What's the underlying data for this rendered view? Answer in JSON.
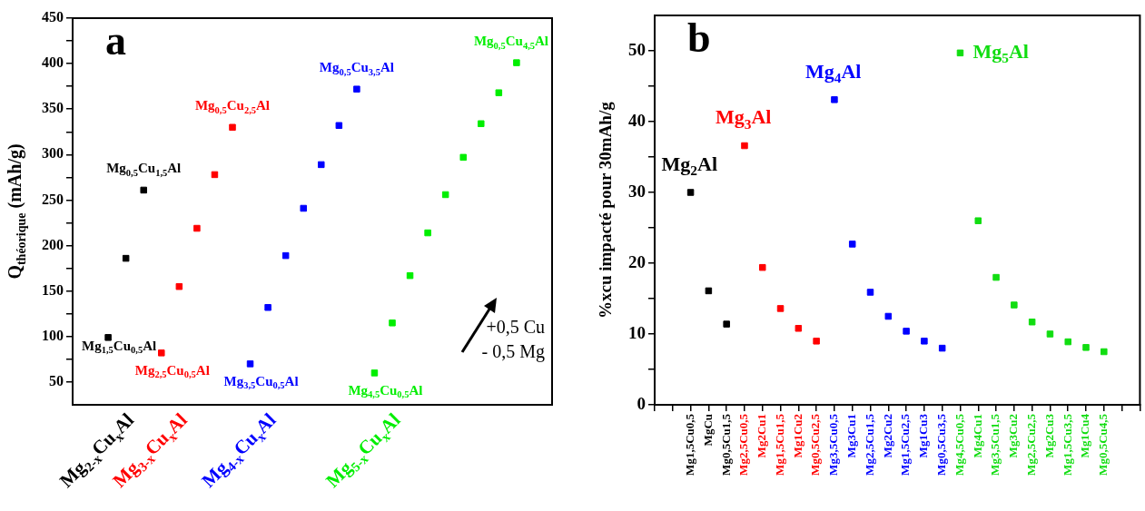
{
  "chart_data": [
    {
      "type": "scatter",
      "title": "a",
      "ylabel": "Q$_{théorique}$ (mAh/g)",
      "marker": "square",
      "categories": [
        null,
        null,
        null,
        "Mg$_{2-x}$Cu$_{x}$Al",
        null,
        null,
        "Mg$_{3-x}$Cu$_{x}$Al",
        null,
        null,
        null,
        null,
        "Mg$_{4-x}$Cu$_{x}$Al",
        null,
        null,
        null,
        null,
        null,
        null,
        "Mg$_{5-x}$Cu$_{x}$Al",
        null,
        null,
        null,
        null,
        null,
        null,
        null,
        null,
        null
      ],
      "ylim": [
        25,
        450
      ],
      "yticks": [
        50,
        {
          "value": 75,
          "label": null
        },
        100,
        {
          "value": 125,
          "label": null
        },
        150,
        {
          "value": 175,
          "label": null
        },
        200,
        {
          "value": 225,
          "label": null
        },
        250,
        {
          "value": 275,
          "label": null
        },
        300,
        {
          "value": 325,
          "label": null
        },
        350,
        {
          "value": 375,
          "label": null
        },
        400,
        {
          "value": 425,
          "label": null
        },
        450
      ],
      "series": [
        {
          "color": "#000000",
          "values": [
            null,
            null,
            99,
            186,
            261,
            null,
            null,
            null,
            null,
            null,
            null,
            null,
            null,
            null,
            null,
            null,
            null,
            null,
            null,
            null,
            null,
            null,
            null,
            null,
            null,
            null,
            null,
            null
          ]
        },
        {
          "color": "#ff0000",
          "values": [
            null,
            null,
            null,
            null,
            null,
            82,
            155,
            219,
            278,
            330,
            null,
            null,
            null,
            null,
            null,
            null,
            null,
            null,
            null,
            null,
            null,
            null,
            null,
            null,
            null,
            null,
            null,
            null
          ]
        },
        {
          "color": "#0000ff",
          "values": [
            null,
            null,
            null,
            null,
            null,
            null,
            null,
            null,
            null,
            null,
            70,
            132,
            189,
            241,
            289,
            332,
            372,
            null,
            null,
            null,
            null,
            null,
            null,
            null,
            null,
            null,
            null,
            null
          ]
        },
        {
          "color": "#00ee00",
          "values": [
            null,
            null,
            null,
            null,
            null,
            null,
            null,
            null,
            null,
            null,
            null,
            null,
            null,
            null,
            null,
            null,
            null,
            60,
            115,
            167,
            214,
            256,
            297,
            334,
            368,
            401,
            null,
            null
          ]
        }
      ],
      "annotations": [
        "Mg$_{1,5}$Cu$_{0,5}$Al",
        {
          "text": "Mg$_{0,5}$Cu$_{1,5}$Al",
          "y": 261
        },
        "Mg$_{2,5}$Cu$_{0,5}$Al",
        {
          "text": "Mg$_{0,5}$Cu$_{2,5}$Al",
          "y": 330
        },
        "Mg$_{3,5}$Cu$_{0,5}$Al",
        {
          "text": "Mg$_{0,5}$Cu$_{3,5}$Al",
          "y": 372
        },
        "Mg$_{4,5}$Cu$_{0,5}$Al",
        {
          "text": "Mg$_{0,5}$Cu$_{4,5}$Al",
          "y": 401
        },
        "+0,5 Cu\n- 0,5 Mg"
      ]
    },
    {
      "type": "scatter",
      "title": "b",
      "ylabel": "%xcu impacté pour 30mAh/g",
      "marker": "square",
      "categories": [
        null,
        null,
        "Mg1,5Cu0,5",
        "MgCu",
        "Mg0,5Cu1,5",
        "Mg2,5Cu0,5",
        "Mg2Cu1",
        "Mg1,5Cu1,5",
        "Mg1Cu2",
        "Mg0,5Cu2,5",
        "Mg3,5Cu0,5",
        "Mg3Cu1",
        "Mg2,5Cu1,5",
        "Mg2Cu2",
        "Mg1,5Cu2,5",
        "Mg1Cu3",
        "Mg0,5Cu3,5",
        "Mg4,5Cu0,5",
        "Mg4Cu1",
        "Mg3,5Cu1,5",
        "Mg3Cu2",
        "Mg2,5Cu2,5",
        "Mg2Cu3",
        "Mg1,5Cu3,5",
        "Mg1Cu4",
        "Mg0,5Cu4,5",
        null,
        null
      ],
      "ylim": [
        0,
        55
      ],
      "yticks": [
        0,
        {
          "value": 5,
          "label": null
        },
        10,
        {
          "value": 15,
          "label": null
        },
        20,
        {
          "value": 25,
          "label": null
        },
        30,
        {
          "value": 35,
          "label": null
        },
        40,
        {
          "value": 45,
          "label": null
        },
        50
      ],
      "series": [
        {
          "name": "Mg$_{2}$Al",
          "color": "#000000",
          "values": [
            null,
            null,
            30.0,
            16.1,
            11.4,
            null,
            null,
            null,
            null,
            null,
            null,
            null,
            null,
            null,
            null,
            null,
            null,
            null,
            null,
            null,
            null,
            null,
            null,
            null,
            null,
            null,
            null,
            null
          ]
        },
        {
          "name": "Mg$_{3}$Al",
          "color": "#ff0000",
          "values": [
            null,
            null,
            null,
            null,
            null,
            36.6,
            19.4,
            13.6,
            10.8,
            9.0,
            null,
            null,
            null,
            null,
            null,
            null,
            null,
            null,
            null,
            null,
            null,
            null,
            null,
            null,
            null,
            null,
            null,
            null
          ]
        },
        {
          "name": "Mg$_{4}$Al",
          "color": "#0000ff",
          "values": [
            null,
            null,
            null,
            null,
            null,
            null,
            null,
            null,
            null,
            null,
            43.1,
            22.7,
            15.9,
            12.5,
            10.4,
            9.0,
            8.0,
            null,
            null,
            null,
            null,
            null,
            null,
            null,
            null,
            null,
            null,
            null
          ]
        },
        {
          "name": "Mg$_{5}$Al",
          "color": "#11dd11",
          "values": [
            null,
            null,
            null,
            null,
            null,
            null,
            null,
            null,
            null,
            null,
            null,
            null,
            null,
            null,
            null,
            null,
            null,
            49.7,
            26.0,
            18.0,
            14.1,
            11.7,
            10.0,
            8.9,
            8.1,
            7.5,
            null,
            null
          ]
        }
      ]
    }
  ]
}
